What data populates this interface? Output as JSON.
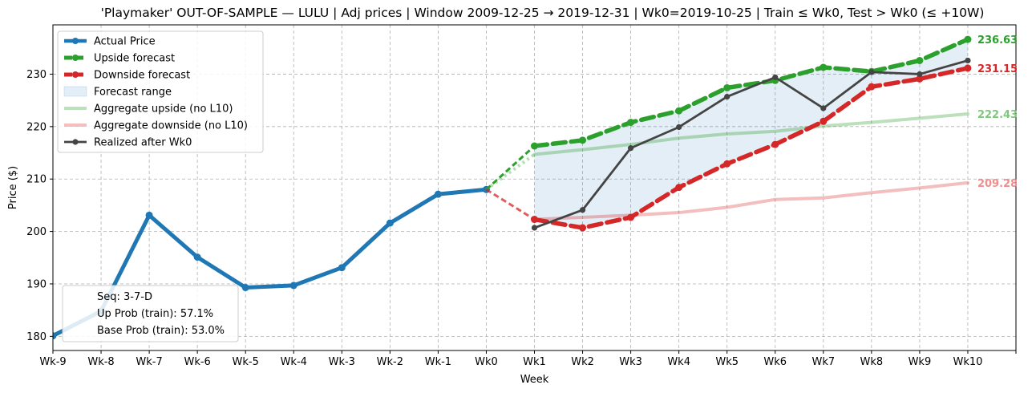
{
  "chart_data": {
    "type": "line",
    "title": "'Playmaker' OUT-OF-SAMPLE — LULU  |  Adj prices  |  Window 2009-12-25 → 2019-12-31  |  Wk0=2019-10-25  |  Train ≤ Wk0, Test > Wk0 (≤ +10W)",
    "xlabel": "Week",
    "ylabel": "Price ($)",
    "categories": [
      "Wk-9",
      "Wk-8",
      "Wk-7",
      "Wk-6",
      "Wk-5",
      "Wk-4",
      "Wk-3",
      "Wk-2",
      "Wk-1",
      "Wk0",
      "Wk1",
      "Wk2",
      "Wk3",
      "Wk4",
      "Wk5",
      "Wk6",
      "Wk7",
      "Wk8",
      "Wk9",
      "Wk10"
    ],
    "xlim": [
      -9,
      11
    ],
    "ylim": [
      177.3,
      239.4
    ],
    "yticks": [
      180,
      190,
      200,
      210,
      220,
      230
    ],
    "grid": true,
    "legend_position": "top-left",
    "series": [
      {
        "name": "Actual Price",
        "color": "#1f77b4",
        "x": [
          -9,
          -8,
          -7,
          -6,
          -5,
          -4,
          -3,
          -2,
          -1,
          0
        ],
        "y": [
          180.1,
          184.8,
          203.1,
          195.1,
          189.3,
          189.7,
          193.1,
          201.6,
          207.1,
          208.0
        ]
      },
      {
        "name": "Upside forecast",
        "color": "#2ca02c",
        "x": [
          0,
          1,
          2,
          3,
          4,
          5,
          6,
          7,
          8,
          9,
          10
        ],
        "y": [
          208.0,
          216.3,
          217.4,
          220.8,
          223.0,
          227.4,
          228.8,
          231.3,
          230.5,
          232.6,
          236.63
        ]
      },
      {
        "name": "Downside forecast",
        "color": "#d62728",
        "x": [
          0,
          1,
          2,
          3,
          4,
          5,
          6,
          7,
          8,
          9,
          10
        ],
        "y": [
          208.0,
          202.3,
          200.7,
          202.7,
          208.4,
          212.9,
          216.6,
          221.0,
          227.6,
          229.1,
          231.15
        ]
      },
      {
        "name": "Forecast range",
        "color": "#1f77b4"
      },
      {
        "name": "Aggregate upside (no L10)",
        "color": "#2ca02c",
        "x": [
          1,
          2,
          3,
          4,
          5,
          6,
          7,
          8,
          9,
          10
        ],
        "y": [
          214.7,
          215.6,
          216.6,
          217.8,
          218.6,
          219.1,
          220.1,
          220.8,
          221.6,
          222.43
        ]
      },
      {
        "name": "Aggregate downside (no L10)",
        "color": "#d62728",
        "x": [
          1,
          2,
          3,
          4,
          5,
          6,
          7,
          8,
          9,
          10
        ],
        "y": [
          202.3,
          202.7,
          203.1,
          203.6,
          204.6,
          206.1,
          206.4,
          207.4,
          208.3,
          209.28
        ]
      },
      {
        "name": "Realized after Wk0",
        "color": "#444444",
        "x": [
          1,
          2,
          3,
          4,
          5,
          6,
          7,
          8,
          9,
          10
        ],
        "y": [
          200.7,
          204.1,
          215.9,
          219.9,
          225.7,
          229.4,
          223.5,
          230.4,
          230.0,
          232.6
        ]
      }
    ],
    "end_labels": [
      {
        "text": "236.63",
        "y": 236.63,
        "color": "#2ca02c"
      },
      {
        "text": "231.15",
        "y": 231.15,
        "color": "#d62728"
      },
      {
        "text": "222.43",
        "y": 222.43,
        "color": "#7dc87d"
      },
      {
        "text": "209.28",
        "y": 209.28,
        "color": "#ee8e8e"
      }
    ],
    "info_box": [
      "Seq: 3-7-D",
      "Up Prob (train): 57.1%",
      "Base Prob (train): 53.0%"
    ]
  }
}
